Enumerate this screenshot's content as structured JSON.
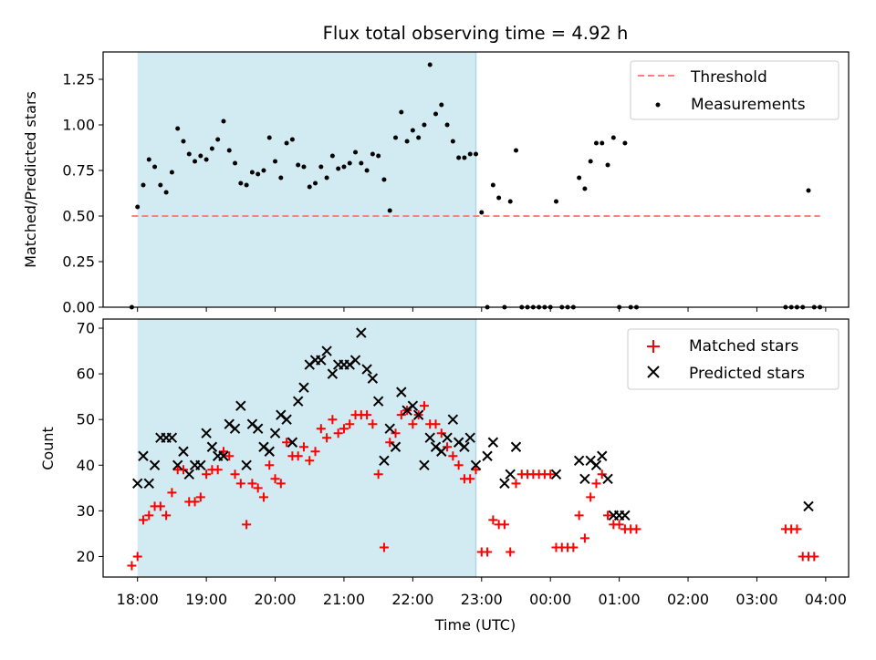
{
  "title": "Flux total observing time = 4.92 h",
  "colors": {
    "shade": "#add8e6",
    "threshold": "#ff7f7f",
    "measurement": "#000000",
    "matched": "#ff0000",
    "predicted": "#000000"
  },
  "chart_data": [
    {
      "type": "scatter",
      "title": "Flux total observing time = 4.92 h",
      "ylabel": "Matched/Predicted stars",
      "ylim": [
        0,
        1.4
      ],
      "yticks": [
        "0.00",
        "0.25",
        "0.50",
        "0.75",
        "1.00",
        "1.25"
      ],
      "grid": false,
      "legend_position": "top-right",
      "shaded_interval": [
        "18:00",
        "22:55"
      ],
      "threshold": {
        "name": "Threshold",
        "value": 0.5,
        "x_start": "17:55",
        "x_end": "03:55"
      },
      "measurements": {
        "name": "Measurements",
        "points": [
          [
            "17:55",
            0.0
          ],
          [
            "18:00",
            0.55
          ],
          [
            "18:05",
            0.67
          ],
          [
            "18:10",
            0.81
          ],
          [
            "18:15",
            0.77
          ],
          [
            "18:20",
            0.67
          ],
          [
            "18:25",
            0.63
          ],
          [
            "18:30",
            0.74
          ],
          [
            "18:35",
            0.98
          ],
          [
            "18:40",
            0.91
          ],
          [
            "18:45",
            0.84
          ],
          [
            "18:50",
            0.8
          ],
          [
            "18:55",
            0.83
          ],
          [
            "19:00",
            0.81
          ],
          [
            "19:05",
            0.87
          ],
          [
            "19:10",
            0.92
          ],
          [
            "19:15",
            1.02
          ],
          [
            "19:20",
            0.86
          ],
          [
            "19:25",
            0.79
          ],
          [
            "19:30",
            0.68
          ],
          [
            "19:35",
            0.67
          ],
          [
            "19:40",
            0.74
          ],
          [
            "19:45",
            0.73
          ],
          [
            "19:50",
            0.75
          ],
          [
            "19:55",
            0.93
          ],
          [
            "20:00",
            0.8
          ],
          [
            "20:05",
            0.71
          ],
          [
            "20:10",
            0.9
          ],
          [
            "20:15",
            0.92
          ],
          [
            "20:20",
            0.78
          ],
          [
            "20:25",
            0.77
          ],
          [
            "20:30",
            0.66
          ],
          [
            "20:35",
            0.68
          ],
          [
            "20:40",
            0.77
          ],
          [
            "20:45",
            0.71
          ],
          [
            "20:50",
            0.83
          ],
          [
            "20:55",
            0.76
          ],
          [
            "21:00",
            0.77
          ],
          [
            "21:05",
            0.79
          ],
          [
            "21:10",
            0.85
          ],
          [
            "21:15",
            0.79
          ],
          [
            "21:20",
            0.75
          ],
          [
            "21:25",
            0.84
          ],
          [
            "21:30",
            0.83
          ],
          [
            "21:35",
            0.7
          ],
          [
            "21:40",
            0.53
          ],
          [
            "21:45",
            0.93
          ],
          [
            "21:50",
            1.07
          ],
          [
            "21:55",
            0.91
          ],
          [
            "22:00",
            0.97
          ],
          [
            "22:05",
            0.93
          ],
          [
            "22:10",
            1.0
          ],
          [
            "22:15",
            1.33
          ],
          [
            "22:20",
            1.06
          ],
          [
            "22:25",
            1.11
          ],
          [
            "22:30",
            1.0
          ],
          [
            "22:35",
            0.91
          ],
          [
            "22:40",
            0.82
          ],
          [
            "22:45",
            0.82
          ],
          [
            "22:50",
            0.84
          ],
          [
            "22:55",
            0.84
          ],
          [
            "23:00",
            0.52
          ],
          [
            "23:05",
            0.0
          ],
          [
            "23:10",
            0.67
          ],
          [
            "23:15",
            0.6
          ],
          [
            "23:20",
            0.0
          ],
          [
            "23:25",
            0.58
          ],
          [
            "23:30",
            0.86
          ],
          [
            "23:35",
            0.0
          ],
          [
            "23:40",
            0.0
          ],
          [
            "23:45",
            0.0
          ],
          [
            "23:50",
            0.0
          ],
          [
            "23:55",
            0.0
          ],
          [
            "00:00",
            0.0
          ],
          [
            "00:05",
            0.58
          ],
          [
            "00:10",
            0.0
          ],
          [
            "00:15",
            0.0
          ],
          [
            "00:20",
            0.0
          ],
          [
            "00:25",
            0.71
          ],
          [
            "00:30",
            0.65
          ],
          [
            "00:35",
            0.8
          ],
          [
            "00:40",
            0.9
          ],
          [
            "00:45",
            0.9
          ],
          [
            "00:50",
            0.78
          ],
          [
            "00:55",
            0.93
          ],
          [
            "01:00",
            0.0
          ],
          [
            "01:05",
            0.9
          ],
          [
            "01:10",
            0.0
          ],
          [
            "01:15",
            0.0
          ],
          [
            "03:25",
            0.0
          ],
          [
            "03:30",
            0.0
          ],
          [
            "03:35",
            0.0
          ],
          [
            "03:40",
            0.0
          ],
          [
            "03:45",
            0.64
          ],
          [
            "03:50",
            0.0
          ],
          [
            "03:55",
            0.0
          ]
        ]
      }
    },
    {
      "type": "scatter",
      "xlabel": "Time (UTC)",
      "ylabel": "Count",
      "ylim": [
        15.5,
        72
      ],
      "yticks": [
        "20",
        "30",
        "40",
        "50",
        "60",
        "70"
      ],
      "xticks": [
        "18:00",
        "19:00",
        "20:00",
        "21:00",
        "22:00",
        "23:00",
        "00:00",
        "01:00",
        "02:00",
        "03:00",
        "04:00"
      ],
      "x_range": [
        "17:30",
        "04:20"
      ],
      "grid": false,
      "legend_position": "top-right",
      "shaded_interval": [
        "18:00",
        "22:55"
      ],
      "series": [
        {
          "name": "Matched stars",
          "marker": "plus",
          "points": [
            [
              "17:55",
              18
            ],
            [
              "18:00",
              20
            ],
            [
              "18:05",
              28
            ],
            [
              "18:10",
              29
            ],
            [
              "18:15",
              31
            ],
            [
              "18:20",
              31
            ],
            [
              "18:25",
              29
            ],
            [
              "18:30",
              34
            ],
            [
              "18:35",
              39
            ],
            [
              "18:40",
              39
            ],
            [
              "18:45",
              32
            ],
            [
              "18:50",
              32
            ],
            [
              "18:55",
              33
            ],
            [
              "19:00",
              38
            ],
            [
              "19:05",
              39
            ],
            [
              "19:10",
              39
            ],
            [
              "19:15",
              43
            ],
            [
              "19:20",
              42
            ],
            [
              "19:25",
              38
            ],
            [
              "19:30",
              36
            ],
            [
              "19:35",
              27
            ],
            [
              "19:40",
              36
            ],
            [
              "19:45",
              35
            ],
            [
              "19:50",
              33
            ],
            [
              "19:55",
              40
            ],
            [
              "20:00",
              37
            ],
            [
              "20:05",
              36
            ],
            [
              "20:10",
              45
            ],
            [
              "20:15",
              42
            ],
            [
              "20:20",
              42
            ],
            [
              "20:25",
              44
            ],
            [
              "20:30",
              41
            ],
            [
              "20:35",
              43
            ],
            [
              "20:40",
              48
            ],
            [
              "20:45",
              46
            ],
            [
              "20:50",
              50
            ],
            [
              "20:55",
              47
            ],
            [
              "21:00",
              48
            ],
            [
              "21:05",
              49
            ],
            [
              "21:10",
              51
            ],
            [
              "21:15",
              51
            ],
            [
              "21:20",
              51
            ],
            [
              "21:25",
              49
            ],
            [
              "21:30",
              38
            ],
            [
              "21:35",
              22
            ],
            [
              "21:40",
              45
            ],
            [
              "21:45",
              47
            ],
            [
              "21:50",
              51
            ],
            [
              "21:55",
              52
            ],
            [
              "22:00",
              49
            ],
            [
              "22:05",
              51
            ],
            [
              "22:10",
              53
            ],
            [
              "22:15",
              49
            ],
            [
              "22:20",
              49
            ],
            [
              "22:25",
              47
            ],
            [
              "22:30",
              44
            ],
            [
              "22:35",
              42
            ],
            [
              "22:40",
              40
            ],
            [
              "22:45",
              37
            ],
            [
              "22:50",
              37
            ],
            [
              "22:55",
              39
            ],
            [
              "23:00",
              21
            ],
            [
              "23:05",
              21
            ],
            [
              "23:10",
              28
            ],
            [
              "23:15",
              27
            ],
            [
              "23:20",
              27
            ],
            [
              "23:25",
              21
            ],
            [
              "23:30",
              36
            ],
            [
              "23:35",
              38
            ],
            [
              "23:40",
              38
            ],
            [
              "23:45",
              38
            ],
            [
              "23:50",
              38
            ],
            [
              "23:55",
              38
            ],
            [
              "00:00",
              38
            ],
            [
              "00:05",
              22
            ],
            [
              "00:10",
              22
            ],
            [
              "00:15",
              22
            ],
            [
              "00:20",
              22
            ],
            [
              "00:25",
              29
            ],
            [
              "00:30",
              24
            ],
            [
              "00:35",
              33
            ],
            [
              "00:40",
              36
            ],
            [
              "00:45",
              38
            ],
            [
              "00:50",
              29
            ],
            [
              "00:55",
              27
            ],
            [
              "01:00",
              27
            ],
            [
              "01:05",
              26
            ],
            [
              "01:10",
              26
            ],
            [
              "01:15",
              26
            ],
            [
              "03:25",
              26
            ],
            [
              "03:30",
              26
            ],
            [
              "03:35",
              26
            ],
            [
              "03:40",
              20
            ],
            [
              "03:45",
              20
            ],
            [
              "03:50",
              20
            ]
          ]
        },
        {
          "name": "Predicted stars",
          "marker": "x",
          "points": [
            [
              "18:00",
              36
            ],
            [
              "18:05",
              42
            ],
            [
              "18:10",
              36
            ],
            [
              "18:15",
              40
            ],
            [
              "18:20",
              46
            ],
            [
              "18:25",
              46
            ],
            [
              "18:30",
              46
            ],
            [
              "18:35",
              40
            ],
            [
              "18:40",
              43
            ],
            [
              "18:45",
              38
            ],
            [
              "18:50",
              40
            ],
            [
              "18:55",
              40
            ],
            [
              "19:00",
              47
            ],
            [
              "19:05",
              44
            ],
            [
              "19:10",
              42
            ],
            [
              "19:15",
              42
            ],
            [
              "19:20",
              49
            ],
            [
              "19:25",
              48
            ],
            [
              "19:30",
              53
            ],
            [
              "19:35",
              40
            ],
            [
              "19:40",
              49
            ],
            [
              "19:45",
              48
            ],
            [
              "19:50",
              44
            ],
            [
              "19:55",
              43
            ],
            [
              "20:00",
              47
            ],
            [
              "20:05",
              51
            ],
            [
              "20:10",
              50
            ],
            [
              "20:15",
              45
            ],
            [
              "20:20",
              54
            ],
            [
              "20:25",
              57
            ],
            [
              "20:30",
              62
            ],
            [
              "20:35",
              63
            ],
            [
              "20:40",
              63
            ],
            [
              "20:45",
              65
            ],
            [
              "20:50",
              60
            ],
            [
              "20:55",
              62
            ],
            [
              "21:00",
              62
            ],
            [
              "21:05",
              62
            ],
            [
              "21:10",
              63
            ],
            [
              "21:15",
              69
            ],
            [
              "21:20",
              61
            ],
            [
              "21:25",
              59
            ],
            [
              "21:30",
              54
            ],
            [
              "21:35",
              41
            ],
            [
              "21:40",
              48
            ],
            [
              "21:45",
              44
            ],
            [
              "21:50",
              56
            ],
            [
              "21:55",
              52
            ],
            [
              "22:00",
              53
            ],
            [
              "22:05",
              51
            ],
            [
              "22:10",
              40
            ],
            [
              "22:15",
              46
            ],
            [
              "22:20",
              44
            ],
            [
              "22:25",
              43
            ],
            [
              "22:30",
              46
            ],
            [
              "22:35",
              50
            ],
            [
              "22:40",
              45
            ],
            [
              "22:45",
              44
            ],
            [
              "22:50",
              46
            ],
            [
              "22:55",
              40
            ],
            [
              "23:05",
              42
            ],
            [
              "23:10",
              45
            ],
            [
              "23:20",
              36
            ],
            [
              "23:25",
              38
            ],
            [
              "23:30",
              44
            ],
            [
              "00:05",
              38
            ],
            [
              "00:25",
              41
            ],
            [
              "00:30",
              37
            ],
            [
              "00:35",
              41
            ],
            [
              "00:40",
              40
            ],
            [
              "00:45",
              42
            ],
            [
              "00:50",
              37
            ],
            [
              "00:55",
              29
            ],
            [
              "01:00",
              29
            ],
            [
              "01:05",
              29
            ],
            [
              "03:45",
              31
            ]
          ]
        }
      ]
    }
  ]
}
